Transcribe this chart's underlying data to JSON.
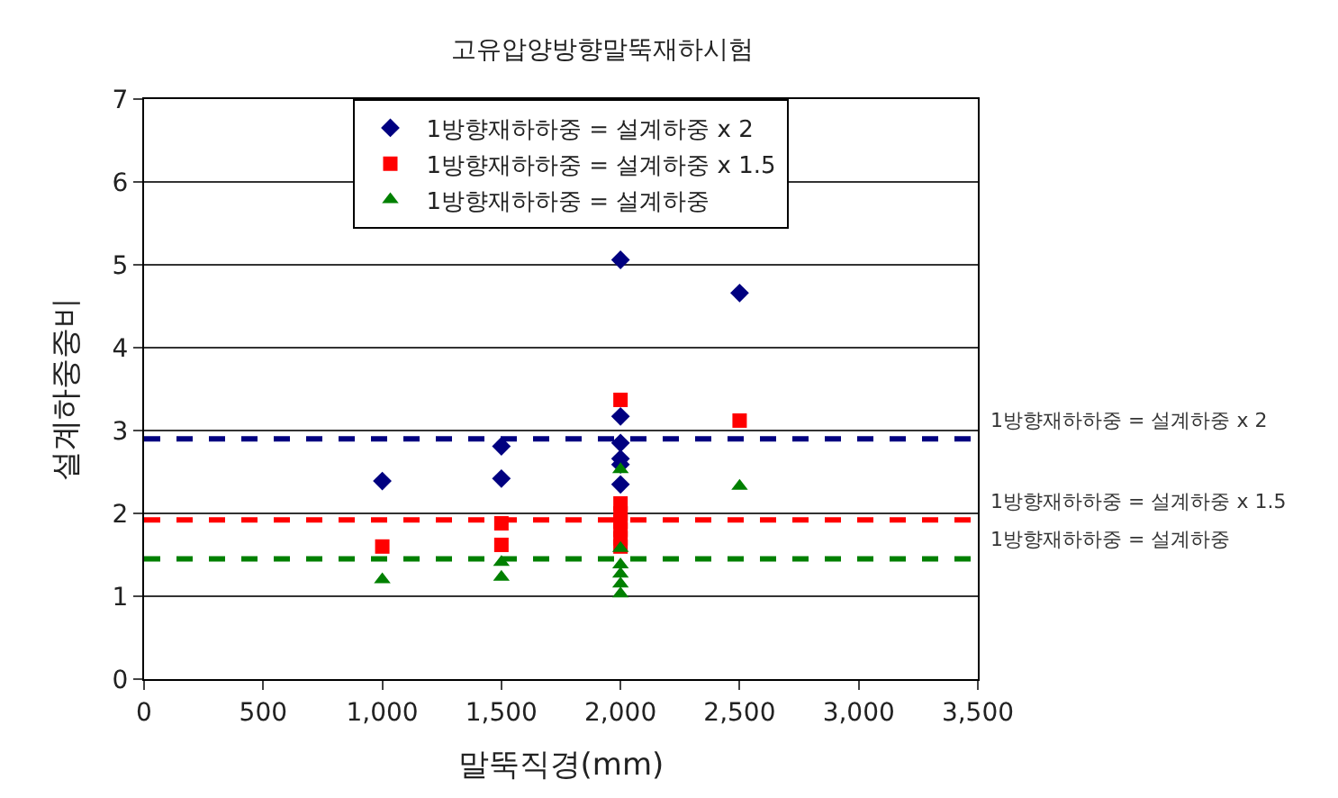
{
  "chart_data": {
    "type": "scatter",
    "title": "고유압양방향말뚝재하시험",
    "xlabel": "말뚝직경(mm)",
    "ylabel": "설계하중중비",
    "xlim": [
      0,
      3500
    ],
    "xticks": [
      {
        "value": 0,
        "label": "0"
      },
      {
        "value": 500,
        "label": "500"
      },
      {
        "value": 1000,
        "label": "1,000"
      },
      {
        "value": 1500,
        "label": "1,500"
      },
      {
        "value": 2000,
        "label": "2,000"
      },
      {
        "value": 2500,
        "label": "2,500"
      },
      {
        "value": 3000,
        "label": "3,000"
      },
      {
        "value": 3500,
        "label": "3,500"
      }
    ],
    "ylim": [
      0,
      7
    ],
    "yticks": [
      0,
      1,
      2,
      3,
      4,
      5,
      6,
      7
    ],
    "grid": "y",
    "legend": "top",
    "series": [
      {
        "name": "1방향재하하중 = 설계하중 x 2",
        "color": "#000080",
        "marker": "diamond",
        "x": [
          1000,
          1500,
          1500,
          2000,
          2000,
          2000,
          2000,
          2000,
          2000,
          2500
        ],
        "values": [
          2.39,
          2.81,
          2.42,
          5.06,
          3.17,
          2.85,
          2.66,
          2.59,
          2.35,
          4.66
        ]
      },
      {
        "name": "1방향재하하중 = 설계하중 x 1.5",
        "color": "#ff0000",
        "marker": "square",
        "x": [
          1000,
          1500,
          1500,
          2000,
          2000,
          2000,
          2000,
          2000,
          2000,
          2000,
          2500
        ],
        "values": [
          1.6,
          1.88,
          1.62,
          3.37,
          2.12,
          2.0,
          1.9,
          1.8,
          1.7,
          1.6,
          3.12
        ]
      },
      {
        "name": "1방향재하하중 = 설계하중",
        "color": "#008000",
        "marker": "triangle",
        "x": [
          1000,
          1500,
          1500,
          2000,
          2000,
          2000,
          2000,
          2000,
          2000,
          2500
        ],
        "values": [
          1.2,
          1.41,
          1.23,
          2.53,
          1.58,
          1.38,
          1.27,
          1.15,
          1.03,
          2.33
        ]
      }
    ],
    "ref_lines": [
      {
        "axis": "y",
        "value": 2.9,
        "label": "1방향재하하중 = 설계하중 x 2",
        "color": "#000080",
        "line_style": "dashed"
      },
      {
        "axis": "y",
        "value": 1.92,
        "label": "1방향재하하중 = 설계하중 x 1.5",
        "color": "#ff0000",
        "line_style": "dashed"
      },
      {
        "axis": "y",
        "value": 1.45,
        "label": "1방향재하하중 = 설계하중",
        "color": "#008000",
        "line_style": "dashed"
      }
    ]
  }
}
